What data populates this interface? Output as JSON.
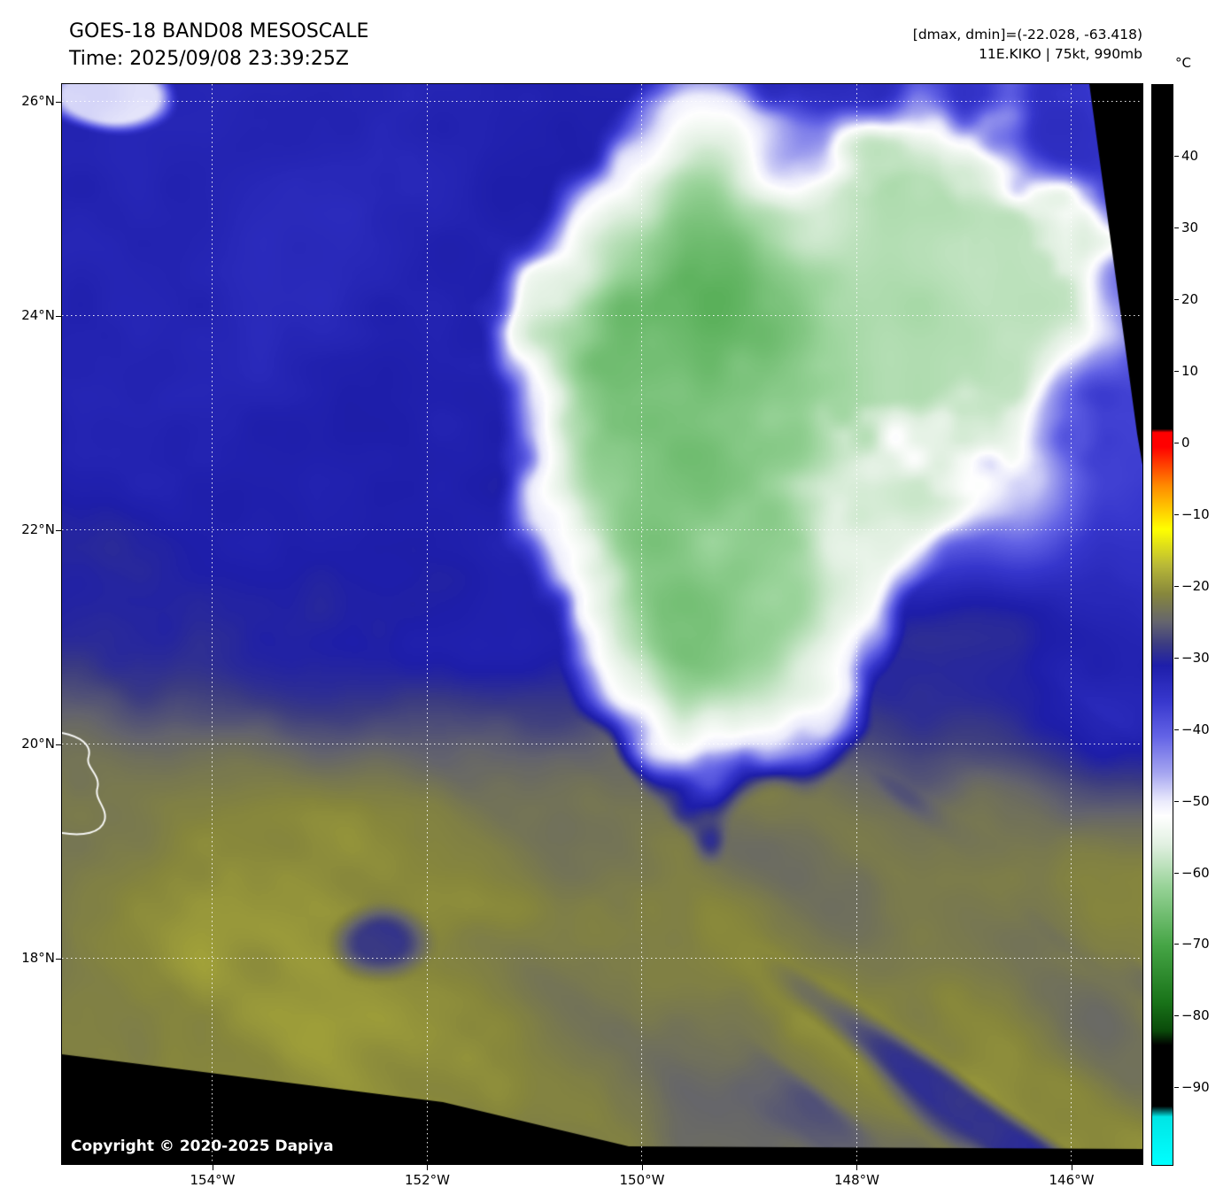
{
  "header": {
    "title": "GOES-18 BAND08 MESOSCALE",
    "time": "Time: 2025/09/08 23:39:25Z",
    "dmax_dmin": "[dmax, dmin]=(-22.028, -63.418)",
    "storm": "11E.KIKO | 75kt, 990mb"
  },
  "map": {
    "copyright": "Copyright © 2020-2025 Dapiya"
  },
  "axes": {
    "lat": {
      "max": 26.165,
      "min": 16.081,
      "gridlines": [
        {
          "value": 26,
          "label": "26°N"
        },
        {
          "value": 24,
          "label": "24°N"
        },
        {
          "value": 22,
          "label": "22°N"
        },
        {
          "value": 20,
          "label": "20°N"
        },
        {
          "value": 18,
          "label": "18°N"
        }
      ]
    },
    "lon": {
      "min": -155.402,
      "max": -145.34,
      "gridlines": [
        {
          "value": -154,
          "label": "154°W"
        },
        {
          "value": -152,
          "label": "152°W"
        },
        {
          "value": -150,
          "label": "150°W"
        },
        {
          "value": -148,
          "label": "148°W"
        },
        {
          "value": -146,
          "label": "146°W"
        }
      ]
    }
  },
  "colorbar": {
    "unit": "°C",
    "vmax": 50,
    "vmin": -100.7,
    "ticks": [
      {
        "value": 40,
        "label": "40"
      },
      {
        "value": 30,
        "label": "30"
      },
      {
        "value": 20,
        "label": "20"
      },
      {
        "value": 10,
        "label": "10"
      },
      {
        "value": 0,
        "label": "0"
      },
      {
        "value": -10,
        "label": "−10"
      },
      {
        "value": -20,
        "label": "−20"
      },
      {
        "value": -30,
        "label": "−30"
      },
      {
        "value": -40,
        "label": "−40"
      },
      {
        "value": -50,
        "label": "−50"
      },
      {
        "value": -60,
        "label": "−60"
      },
      {
        "value": -70,
        "label": "−70"
      },
      {
        "value": -80,
        "label": "−80"
      },
      {
        "value": -90,
        "label": "−90"
      }
    ],
    "stops": [
      {
        "v": -100.7,
        "c": "#00ffff"
      },
      {
        "v": -94,
        "c": "#00e5e5"
      },
      {
        "v": -92.5,
        "c": "#000000"
      },
      {
        "v": -84,
        "c": "#000000"
      },
      {
        "v": -82,
        "c": "#0a4a0a"
      },
      {
        "v": -78,
        "c": "#197319"
      },
      {
        "v": -70,
        "c": "#46a546"
      },
      {
        "v": -62,
        "c": "#96d296"
      },
      {
        "v": -56,
        "c": "#e1f0e1"
      },
      {
        "v": -52,
        "c": "#ffffff"
      },
      {
        "v": -50,
        "c": "#ebebfc"
      },
      {
        "v": -46,
        "c": "#a5a5f0"
      },
      {
        "v": -41,
        "c": "#6464e6"
      },
      {
        "v": -36,
        "c": "#3737cd"
      },
      {
        "v": -31,
        "c": "#1e1eaa"
      },
      {
        "v": -28,
        "c": "#3c3c82"
      },
      {
        "v": -25,
        "c": "#64646e"
      },
      {
        "v": -21,
        "c": "#87873c"
      },
      {
        "v": -17,
        "c": "#b9b937"
      },
      {
        "v": -12,
        "c": "#ffff00"
      },
      {
        "v": -6,
        "c": "#ff8c00"
      },
      {
        "v": -0.5,
        "c": "#ff0000"
      },
      {
        "v": 1.5,
        "c": "#ff0000"
      },
      {
        "v": 2,
        "c": "#000000"
      },
      {
        "v": 50,
        "c": "#000000"
      }
    ]
  }
}
